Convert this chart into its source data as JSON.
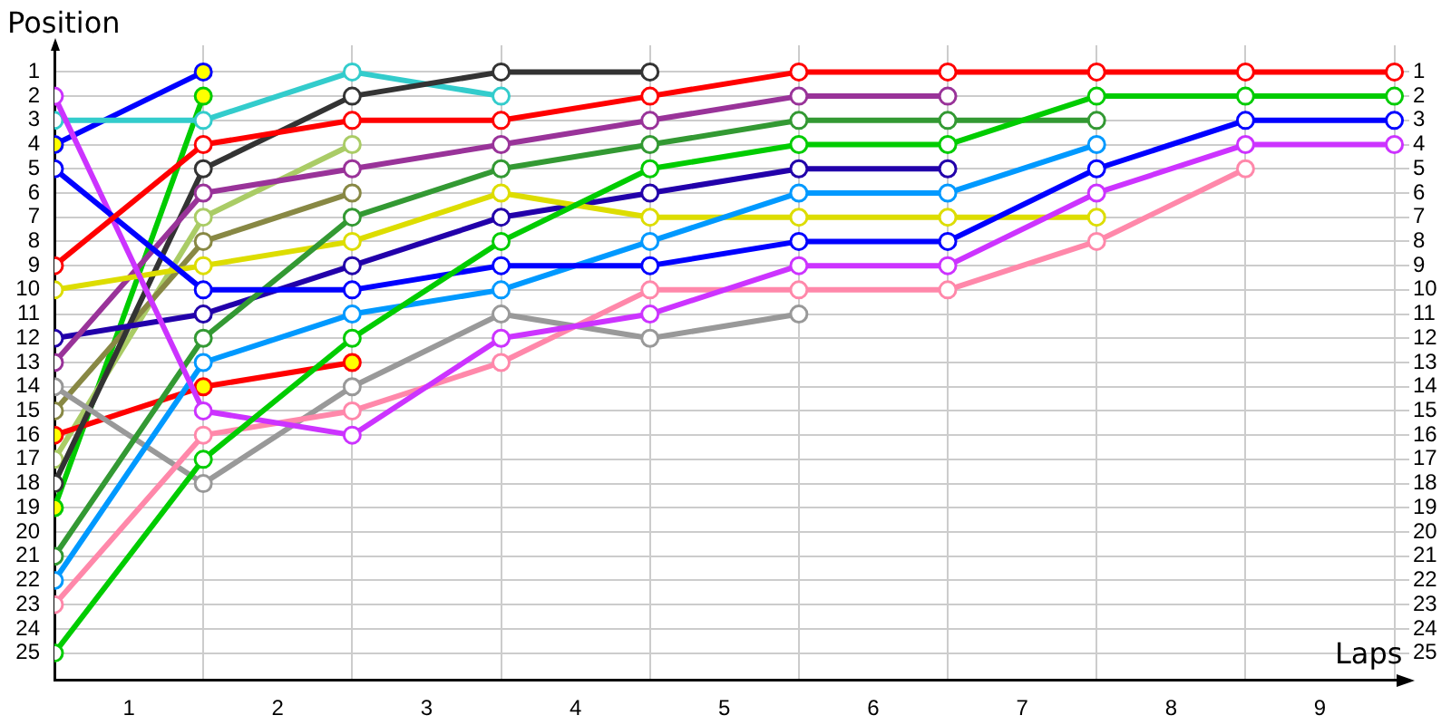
{
  "chart_data": {
    "type": "line",
    "xlabel": "Laps",
    "ylabel": "Position",
    "x": [
      0,
      1,
      2,
      3,
      4,
      5,
      6,
      7,
      8,
      9
    ],
    "series": [
      {
        "color": "#ff0000",
        "values": [
          9,
          4,
          3,
          3,
          2,
          1,
          1,
          1,
          1,
          1
        ]
      },
      {
        "color": "#00cc00",
        "values": [
          25,
          17,
          12,
          8,
          5,
          4,
          4,
          2,
          2,
          2
        ]
      },
      {
        "color": "#0000ff",
        "values": [
          5,
          10,
          10,
          9,
          9,
          8,
          8,
          5,
          3,
          3
        ]
      },
      {
        "color": "#cc33ff",
        "values": [
          2,
          15,
          16,
          12,
          11,
          9,
          9,
          6,
          4,
          4
        ]
      },
      {
        "color": "#ff88aa",
        "values": [
          23,
          16,
          15,
          13,
          10,
          10,
          10,
          8,
          5,
          null
        ]
      },
      {
        "color": "#339933",
        "values": [
          21,
          12,
          7,
          5,
          4,
          3,
          3,
          3,
          null,
          null
        ]
      },
      {
        "color": "#0099ff",
        "values": [
          22,
          13,
          11,
          10,
          8,
          6,
          6,
          4,
          null,
          null
        ]
      },
      {
        "color": "#dddd00",
        "values": [
          10,
          9,
          8,
          6,
          7,
          7,
          7,
          7,
          null,
          null
        ]
      },
      {
        "color": "#993399",
        "values": [
          13,
          6,
          5,
          4,
          3,
          2,
          2,
          null,
          null,
          null
        ]
      },
      {
        "color": "#2200aa",
        "values": [
          12,
          11,
          9,
          7,
          6,
          5,
          5,
          null,
          null,
          null
        ]
      },
      {
        "color": "#999999",
        "values": [
          14,
          18,
          14,
          11,
          12,
          11,
          null,
          null,
          null,
          null
        ]
      },
      {
        "color": "#333333",
        "values": [
          18,
          5,
          2,
          1,
          1,
          null,
          null,
          null,
          null,
          null
        ]
      },
      {
        "color": "#33cccc",
        "values": [
          3,
          3,
          1,
          2,
          null,
          null,
          null,
          null,
          null,
          null
        ]
      },
      {
        "color": "#ff0000",
        "colors": [
          "#ffff00",
          "#ffff00",
          "#ffff00",
          null,
          null,
          null,
          null,
          null,
          null,
          null
        ],
        "values": [
          16,
          14,
          13,
          null,
          null,
          null,
          null,
          null,
          null,
          null
        ]
      },
      {
        "color": "#888844",
        "values": [
          15,
          8,
          6,
          null,
          null,
          null,
          null,
          null,
          null,
          null
        ]
      },
      {
        "color": "#aacc66",
        "values": [
          17,
          7,
          4,
          null,
          null,
          null,
          null,
          null,
          null,
          null
        ]
      },
      {
        "color": "#0000ff",
        "colors": [
          "#ffff00",
          "#ffff00",
          null,
          null,
          null,
          null,
          null,
          null,
          null,
          null
        ],
        "values": [
          4,
          1,
          null,
          null,
          null,
          null,
          null,
          null,
          null,
          null
        ]
      },
      {
        "color": "#00cc00",
        "colors": [
          "#ffff00",
          "#ffff00",
          null,
          null,
          null,
          null,
          null,
          null,
          null,
          null
        ],
        "values": [
          19,
          2,
          null,
          null,
          null,
          null,
          null,
          null,
          null,
          null
        ]
      }
    ],
    "xlim": [
      0,
      9.1
    ],
    "xticks": [
      {
        "value": 0.5,
        "label": "1"
      },
      {
        "value": 1,
        "label": null
      },
      {
        "value": 1.5,
        "label": "2"
      },
      {
        "value": 2,
        "label": null
      },
      {
        "value": 2.5,
        "label": "3"
      },
      {
        "value": 3,
        "label": null
      },
      {
        "value": 3.5,
        "label": "4"
      },
      {
        "value": 4,
        "label": null
      },
      {
        "value": 4.5,
        "label": "5"
      },
      {
        "value": 5,
        "label": null
      },
      {
        "value": 5.5,
        "label": "6"
      },
      {
        "value": 6,
        "label": null
      },
      {
        "value": 6.5,
        "label": "7"
      },
      {
        "value": 7,
        "label": null
      },
      {
        "value": 7.5,
        "label": "8"
      },
      {
        "value": 8,
        "label": null
      },
      {
        "value": 8.5,
        "label": "9"
      },
      {
        "value": 9,
        "label": null
      }
    ],
    "ylim": [
      26.1,
      -0.1
    ],
    "yticks": [
      1,
      2,
      3,
      4,
      5,
      6,
      7,
      8,
      9,
      10,
      11,
      12,
      13,
      14,
      15,
      16,
      17,
      18,
      19,
      20,
      21,
      22,
      23,
      24,
      25
    ],
    "y2lim": [
      26.1,
      -0.1
    ],
    "y2ticks": [
      1,
      2,
      3,
      4,
      5,
      6,
      7,
      8,
      9,
      10,
      11,
      12,
      13,
      14,
      15,
      16,
      17,
      18,
      19,
      20,
      21,
      22,
      23,
      24,
      25
    ],
    "grid": true,
    "marker": "circle",
    "line_style": "solid"
  }
}
